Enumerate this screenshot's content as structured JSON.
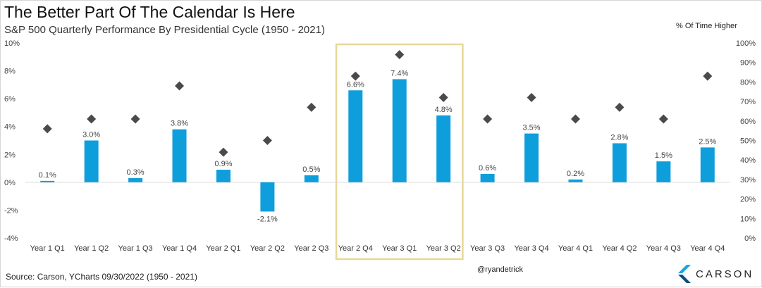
{
  "header": {
    "title": "The Better Part Of The Calendar Is Here",
    "subtitle": "S&P 500 Quarterly Performance By Presidential Cycle (1950 - 2021)",
    "right_axis_label": "% Of Time Higher"
  },
  "footer": {
    "source": "Source: Carson, YCharts 09/30/2022 (1950 - 2021)",
    "handle": "@ryandetrick",
    "logo_text": "CARSON"
  },
  "colors": {
    "bar": "#0f9edc",
    "marker": "#4a4a4a",
    "highlight_box": "#e8d79a",
    "logo_light": "#1aa3e0",
    "logo_dark": "#0b4f7a"
  },
  "chart_data": {
    "type": "bar",
    "categories": [
      "Year 1 Q1",
      "Year 1 Q2",
      "Year 1 Q3",
      "Year 1 Q4",
      "Year 2 Q1",
      "Year 2 Q2",
      "Year 2 Q3",
      "Year 2 Q4",
      "Year 3 Q1",
      "Year 3 Q2",
      "Year 3 Q3",
      "Year 3 Q4",
      "Year 4 Q1",
      "Year 4 Q2",
      "Year 4 Q3",
      "Year 4 Q4"
    ],
    "series": [
      {
        "kind": "bar",
        "axis": "left",
        "values": [
          0.1,
          3.0,
          0.3,
          3.8,
          0.9,
          -2.1,
          0.5,
          6.6,
          7.4,
          4.8,
          0.6,
          3.5,
          0.2,
          2.8,
          1.5,
          2.5
        ],
        "labels": [
          "0.1%",
          "3.0%",
          "0.3%",
          "3.8%",
          "0.9%",
          "-2.1%",
          "0.5%",
          "6.6%",
          "7.4%",
          "4.8%",
          "0.6%",
          "3.5%",
          "0.2%",
          "2.8%",
          "1.5%",
          "2.5%"
        ]
      },
      {
        "kind": "marker",
        "axis": "right",
        "values": [
          56,
          61,
          61,
          78,
          44,
          50,
          67,
          83,
          94,
          72,
          61,
          72,
          61,
          67,
          61,
          83
        ]
      }
    ],
    "left_axis": {
      "range": [
        -4,
        10
      ],
      "ticks": [
        -4,
        -2,
        0,
        2,
        4,
        6,
        8,
        10
      ],
      "tick_labels": [
        "-4%",
        "-2%",
        "0%",
        "2%",
        "4%",
        "6%",
        "8%",
        "10%"
      ]
    },
    "right_axis": {
      "range": [
        0,
        100
      ],
      "ticks": [
        0,
        10,
        20,
        30,
        40,
        50,
        60,
        70,
        80,
        90,
        100
      ],
      "tick_labels": [
        "0%",
        "10%",
        "20%",
        "30%",
        "40%",
        "50%",
        "60%",
        "70%",
        "80%",
        "90%",
        "100%"
      ]
    },
    "highlight": {
      "from_category": "Year 2 Q4",
      "to_category": "Year 3 Q2"
    },
    "grid": false,
    "legend": "none"
  }
}
